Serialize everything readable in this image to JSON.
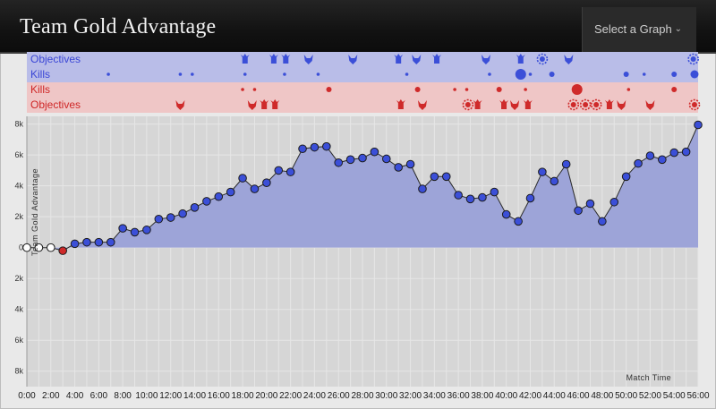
{
  "header": {
    "title": "Team Gold Advantage",
    "select_label": "Select a Graph"
  },
  "colors": {
    "blue": "#3b4fd8",
    "red": "#cf2a2a",
    "fill": "#9da4d8",
    "blue_band": "#b9bde8",
    "red_band": "#efc6c6"
  },
  "bands": [
    {
      "label": "Objectives",
      "team": "blue"
    },
    {
      "label": "Kills",
      "team": "blue"
    },
    {
      "label": "Kills",
      "team": "red"
    },
    {
      "label": "Objectives",
      "team": "red"
    }
  ],
  "events": {
    "blue_objectives": [
      {
        "t": 18.2,
        "icon": "turret-icon"
      },
      {
        "t": 20.6,
        "icon": "turret-icon"
      },
      {
        "t": 21.6,
        "icon": "turret-icon"
      },
      {
        "t": 23.5,
        "icon": "dragon-icon"
      },
      {
        "t": 27.2,
        "icon": "dragon-icon"
      },
      {
        "t": 31.0,
        "icon": "turret-icon"
      },
      {
        "t": 32.5,
        "icon": "dragon-icon"
      },
      {
        "t": 34.2,
        "icon": "turret-icon"
      },
      {
        "t": 38.3,
        "icon": "dragon-icon"
      },
      {
        "t": 41.2,
        "icon": "turret-icon"
      },
      {
        "t": 43.0,
        "icon": "inhibitor-icon"
      },
      {
        "t": 45.2,
        "icon": "dragon-icon"
      },
      {
        "t": 55.6,
        "icon": "inhibitor-icon"
      }
    ],
    "blue_kills": [
      {
        "t": 6.8,
        "n": 1
      },
      {
        "t": 12.8,
        "n": 1
      },
      {
        "t": 13.8,
        "n": 1
      },
      {
        "t": 18.2,
        "n": 1
      },
      {
        "t": 21.5,
        "n": 1
      },
      {
        "t": 24.3,
        "n": 1
      },
      {
        "t": 31.7,
        "n": 1
      },
      {
        "t": 38.6,
        "n": 1
      },
      {
        "t": 41.2,
        "n": 4
      },
      {
        "t": 42.0,
        "n": 1
      },
      {
        "t": 43.8,
        "n": 2
      },
      {
        "t": 50.0,
        "n": 2
      },
      {
        "t": 51.5,
        "n": 1
      },
      {
        "t": 54.0,
        "n": 2
      },
      {
        "t": 55.7,
        "n": 3
      }
    ],
    "red_kills": [
      {
        "t": 18.0,
        "n": 1
      },
      {
        "t": 19.0,
        "n": 1
      },
      {
        "t": 25.2,
        "n": 2
      },
      {
        "t": 32.6,
        "n": 2
      },
      {
        "t": 35.7,
        "n": 1
      },
      {
        "t": 36.7,
        "n": 1
      },
      {
        "t": 39.4,
        "n": 2
      },
      {
        "t": 41.6,
        "n": 1
      },
      {
        "t": 45.9,
        "n": 4
      },
      {
        "t": 50.2,
        "n": 1
      },
      {
        "t": 54.0,
        "n": 2
      }
    ],
    "red_objectives": [
      {
        "t": 12.8,
        "icon": "dragon-icon"
      },
      {
        "t": 18.8,
        "icon": "dragon-icon"
      },
      {
        "t": 19.8,
        "icon": "turret-icon"
      },
      {
        "t": 20.7,
        "icon": "turret-icon"
      },
      {
        "t": 31.2,
        "icon": "turret-icon"
      },
      {
        "t": 33.0,
        "icon": "dragon-icon"
      },
      {
        "t": 36.8,
        "icon": "inhibitor-icon"
      },
      {
        "t": 37.6,
        "icon": "turret-icon"
      },
      {
        "t": 39.8,
        "icon": "turret-icon"
      },
      {
        "t": 40.7,
        "icon": "dragon-icon"
      },
      {
        "t": 41.8,
        "icon": "turret-icon"
      },
      {
        "t": 45.6,
        "icon": "inhibitor-icon"
      },
      {
        "t": 46.6,
        "icon": "inhibitor-icon"
      },
      {
        "t": 47.5,
        "icon": "inhibitor-icon"
      },
      {
        "t": 48.6,
        "icon": "turret-icon"
      },
      {
        "t": 49.6,
        "icon": "dragon-icon"
      },
      {
        "t": 52.0,
        "icon": "dragon-icon"
      },
      {
        "t": 55.7,
        "icon": "inhibitor-icon"
      }
    ]
  },
  "chart_data": {
    "type": "area",
    "title": "",
    "ylabel": "Team Gold Advantage",
    "xlabel": "Match Time",
    "xlim": [
      0,
      56
    ],
    "ylim": [
      -9000,
      8500
    ],
    "y_ticks": [
      8000,
      6000,
      4000,
      2000,
      0,
      -2000,
      -4000,
      -6000,
      -8000
    ],
    "y_tick_labels": [
      "8k",
      "6k",
      "4k",
      "2k",
      "0",
      "2k",
      "4k",
      "6k",
      "8k"
    ],
    "x_ticks": [
      0,
      2,
      4,
      6,
      8,
      10,
      12,
      14,
      16,
      18,
      20,
      22,
      24,
      26,
      28,
      30,
      32,
      34,
      36,
      38,
      40,
      42,
      44,
      46,
      48,
      50,
      52,
      54,
      56
    ],
    "x_tick_labels": [
      "0:00",
      "2:00",
      "4:00",
      "6:00",
      "8:00",
      "10:00",
      "12:00",
      "14:00",
      "16:00",
      "18:00",
      "20:00",
      "22:00",
      "24:00",
      "26:00",
      "28:00",
      "30:00",
      "32:00",
      "34:00",
      "36:00",
      "38:00",
      "40:00",
      "42:00",
      "44:00",
      "46:00",
      "48:00",
      "50:00",
      "52:00",
      "54:00",
      "56:00"
    ],
    "grid": true,
    "x": [
      0,
      1,
      2,
      3,
      4,
      5,
      6,
      7,
      8,
      9,
      10,
      11,
      12,
      13,
      14,
      15,
      16,
      17,
      18,
      19,
      20,
      21,
      22,
      23,
      24,
      25,
      26,
      27,
      28,
      29,
      30,
      31,
      32,
      33,
      34,
      35,
      36,
      37,
      38,
      39,
      40,
      41,
      42,
      43,
      44,
      45,
      46,
      47,
      48,
      49,
      50,
      51,
      52,
      53,
      54,
      55,
      56
    ],
    "values": [
      0,
      0,
      0,
      -200,
      250,
      350,
      350,
      350,
      1250,
      1000,
      1150,
      1850,
      1950,
      2200,
      2600,
      3000,
      3300,
      3600,
      4500,
      3800,
      4200,
      5000,
      4900,
      6400,
      6500,
      6550,
      5500,
      5700,
      5800,
      6200,
      5750,
      5200,
      5400,
      3800,
      4600,
      4600,
      3400,
      3150,
      3250,
      3600,
      2150,
      1700,
      3200,
      4900,
      4300,
      5400,
      2400,
      2850,
      1700,
      2950,
      4600,
      5450,
      5950,
      5700,
      6150,
      6200,
      7950
    ]
  }
}
